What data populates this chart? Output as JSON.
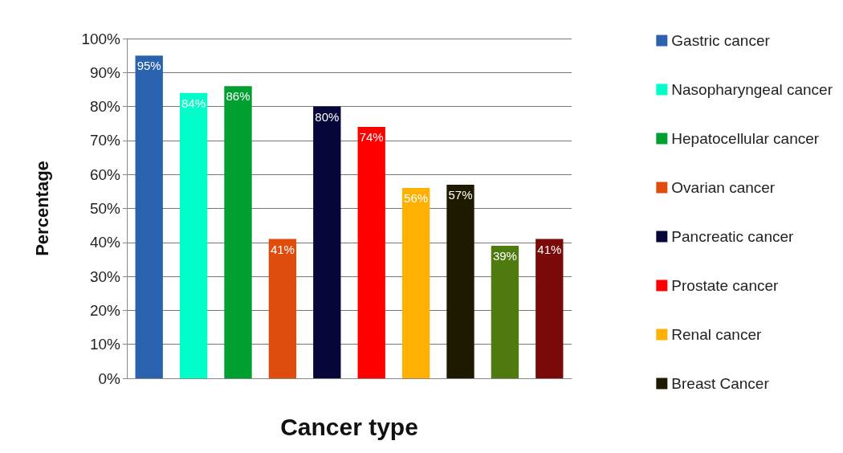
{
  "chart_data": {
    "type": "bar",
    "xlabel": "Cancer type",
    "ylabel": "Percentage",
    "categories": [
      null,
      null,
      null,
      null,
      null,
      null,
      null,
      null,
      null,
      null
    ],
    "ylim": [
      0,
      100
    ],
    "yticks": [
      {
        "value": 0,
        "label": "0%"
      },
      {
        "value": 10,
        "label": "10%"
      },
      {
        "value": 20,
        "label": "20%"
      },
      {
        "value": 30,
        "label": "30%"
      },
      {
        "value": 40,
        "label": "40%"
      },
      {
        "value": 50,
        "label": "50%"
      },
      {
        "value": 60,
        "label": "60%"
      },
      {
        "value": 70,
        "label": "70%"
      },
      {
        "value": 80,
        "label": "80%"
      },
      {
        "value": 90,
        "label": "90%"
      },
      {
        "value": 100,
        "label": "100%"
      }
    ],
    "grid": "y",
    "legend": "right",
    "series": [
      {
        "name": "Gastric cancer",
        "color": "#2a62b0",
        "values": [
          95,
          null,
          null,
          null,
          null,
          null,
          null,
          null,
          null,
          null
        ],
        "value_labels": [
          "95%",
          null,
          null,
          null,
          null,
          null,
          null,
          null,
          null,
          null
        ]
      },
      {
        "name": "Nasopharyngeal cancer",
        "color": "#00ffc8",
        "values": [
          null,
          84,
          null,
          null,
          null,
          null,
          null,
          null,
          null,
          null
        ],
        "value_labels": [
          null,
          "84%",
          null,
          null,
          null,
          null,
          null,
          null,
          null,
          null
        ]
      },
      {
        "name": "Hepatocellular cancer",
        "color": "#00a030",
        "values": [
          null,
          null,
          86,
          null,
          null,
          null,
          null,
          null,
          null,
          null
        ],
        "value_labels": [
          null,
          null,
          "86%",
          null,
          null,
          null,
          null,
          null,
          null,
          null
        ]
      },
      {
        "name": "Ovarian cancer",
        "color": "#e04c0c",
        "values": [
          null,
          null,
          null,
          41,
          null,
          null,
          null,
          null,
          null,
          null
        ],
        "value_labels": [
          null,
          null,
          null,
          "41%",
          null,
          null,
          null,
          null,
          null,
          null
        ]
      },
      {
        "name": "Pancreatic cancer",
        "color": "#06063a",
        "values": [
          null,
          null,
          null,
          null,
          80,
          null,
          null,
          null,
          null,
          null
        ],
        "value_labels": [
          null,
          null,
          null,
          null,
          "80%",
          null,
          null,
          null,
          null,
          null
        ]
      },
      {
        "name": "Prostate cancer",
        "color": "#ff0000",
        "values": [
          null,
          null,
          null,
          null,
          null,
          74,
          null,
          null,
          null,
          null
        ],
        "value_labels": [
          null,
          null,
          null,
          null,
          null,
          "74%",
          null,
          null,
          null,
          null
        ]
      },
      {
        "name": "Renal cancer",
        "color": "#ffb000",
        "values": [
          null,
          null,
          null,
          null,
          null,
          null,
          56,
          null,
          null,
          null
        ],
        "value_labels": [
          null,
          null,
          null,
          null,
          null,
          null,
          "56%",
          null,
          null,
          null
        ]
      },
      {
        "name": "Breast Cancer",
        "color": "#1e1a00",
        "values": [
          null,
          null,
          null,
          null,
          null,
          null,
          null,
          57,
          null,
          null
        ],
        "value_labels": [
          null,
          null,
          null,
          null,
          null,
          null,
          null,
          "57%",
          null,
          null
        ]
      },
      {
        "color": "#4f7a10",
        "values": [
          null,
          null,
          null,
          null,
          null,
          null,
          null,
          null,
          39,
          null
        ],
        "value_labels": [
          null,
          null,
          null,
          null,
          null,
          null,
          null,
          null,
          "39%",
          null
        ]
      },
      {
        "color": "#7a0a0a",
        "values": [
          null,
          null,
          null,
          null,
          null,
          null,
          null,
          null,
          null,
          41
        ],
        "value_labels": [
          null,
          null,
          null,
          null,
          null,
          null,
          null,
          null,
          null,
          "41%"
        ]
      }
    ]
  }
}
